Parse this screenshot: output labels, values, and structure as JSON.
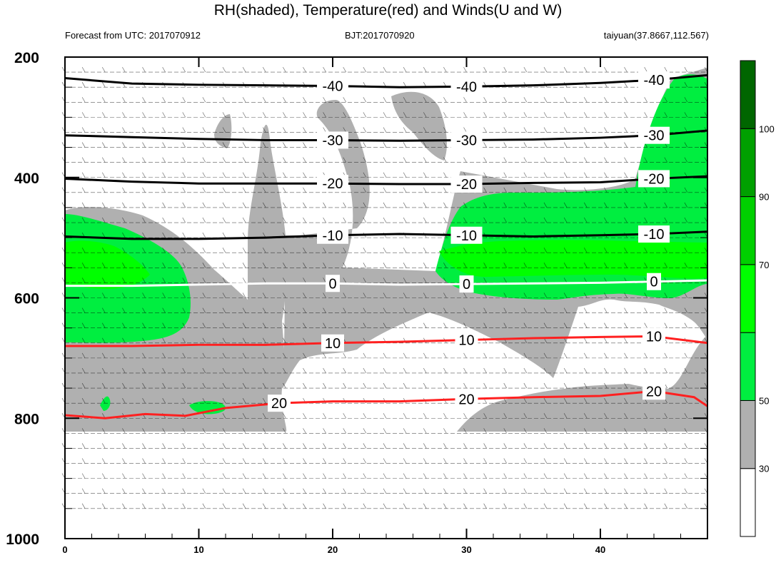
{
  "header": {
    "title": "RH(shaded), Temperature(red) and Winds(U and W)",
    "forecast_from": "Forecast from UTC: 2017070912",
    "bjt": "BJT:2017070920",
    "location": "taiyuan(37.8667,112.567)"
  },
  "chart_data": {
    "type": "contour",
    "title": "RH(shaded), Temperature(red) and Winds(U and W)",
    "xlabel": "",
    "ylabel": "",
    "xlim": [
      0,
      48
    ],
    "ylim": [
      1000,
      200
    ],
    "y_reversed": true,
    "x_ticks": [
      0,
      10,
      20,
      30,
      40
    ],
    "y_ticks": [
      200,
      400,
      600,
      800,
      1000
    ],
    "colorbar": {
      "levels": [
        30,
        50,
        70,
        90,
        100
      ],
      "label_values": [
        "100",
        "90",
        "70",
        "50",
        "30"
      ],
      "colors": [
        "#ffffff",
        "#b0b0b0",
        "#00ee40",
        "#00ff00",
        "#00d000",
        "#00a000",
        "#006600"
      ]
    },
    "temperature_contours": [
      {
        "label": "-40",
        "color": "#000000",
        "points": [
          [
            0,
            235
          ],
          [
            5,
            244
          ],
          [
            10,
            246
          ],
          [
            15,
            247
          ],
          [
            20,
            248
          ],
          [
            25,
            250
          ],
          [
            30,
            249
          ],
          [
            35,
            247
          ],
          [
            40,
            243
          ],
          [
            44,
            238
          ],
          [
            48,
            230
          ]
        ]
      },
      {
        "label": "-30",
        "color": "#000000",
        "points": [
          [
            0,
            330
          ],
          [
            5,
            333
          ],
          [
            10,
            336
          ],
          [
            15,
            338
          ],
          [
            20,
            338
          ],
          [
            25,
            339
          ],
          [
            30,
            338
          ],
          [
            35,
            337
          ],
          [
            40,
            334
          ],
          [
            44,
            330
          ],
          [
            48,
            322
          ]
        ]
      },
      {
        "label": "-20",
        "color": "#000000",
        "points": [
          [
            0,
            402
          ],
          [
            5,
            407
          ],
          [
            10,
            410
          ],
          [
            15,
            410
          ],
          [
            20,
            410
          ],
          [
            25,
            411
          ],
          [
            30,
            411
          ],
          [
            35,
            409
          ],
          [
            40,
            408
          ],
          [
            44,
            402
          ],
          [
            48,
            398
          ]
        ]
      },
      {
        "label": "-10",
        "color": "#000000",
        "points": [
          [
            0,
            498
          ],
          [
            5,
            502
          ],
          [
            10,
            502
          ],
          [
            15,
            500
          ],
          [
            20,
            496
          ],
          [
            25,
            494
          ],
          [
            30,
            496
          ],
          [
            35,
            498
          ],
          [
            40,
            496
          ],
          [
            44,
            494
          ],
          [
            48,
            490
          ]
        ]
      },
      {
        "label": "0",
        "color": "#ffffff",
        "points": [
          [
            0,
            580
          ],
          [
            5,
            580
          ],
          [
            10,
            578
          ],
          [
            15,
            576
          ],
          [
            20,
            576
          ],
          [
            25,
            578
          ],
          [
            30,
            577
          ],
          [
            35,
            576
          ],
          [
            40,
            575
          ],
          [
            44,
            573
          ],
          [
            48,
            571
          ]
        ]
      },
      {
        "label": "10",
        "color": "#ff2020",
        "points": [
          [
            0,
            680
          ],
          [
            5,
            680
          ],
          [
            10,
            678
          ],
          [
            15,
            678
          ],
          [
            20,
            675
          ],
          [
            25,
            673
          ],
          [
            30,
            670
          ],
          [
            35,
            667
          ],
          [
            40,
            665
          ],
          [
            44,
            664
          ],
          [
            48,
            675
          ]
        ]
      },
      {
        "label": "20",
        "color": "#ff2020",
        "points": [
          [
            0,
            795
          ],
          [
            3,
            800
          ],
          [
            6,
            793
          ],
          [
            9,
            796
          ],
          [
            12,
            783
          ],
          [
            16,
            775
          ],
          [
            20,
            772
          ],
          [
            25,
            772
          ],
          [
            30,
            768
          ],
          [
            35,
            765
          ],
          [
            40,
            763
          ],
          [
            44,
            755
          ],
          [
            47,
            765
          ],
          [
            48,
            780
          ]
        ]
      }
    ],
    "wind_no_data_levels": [
      950,
      1000
    ]
  }
}
